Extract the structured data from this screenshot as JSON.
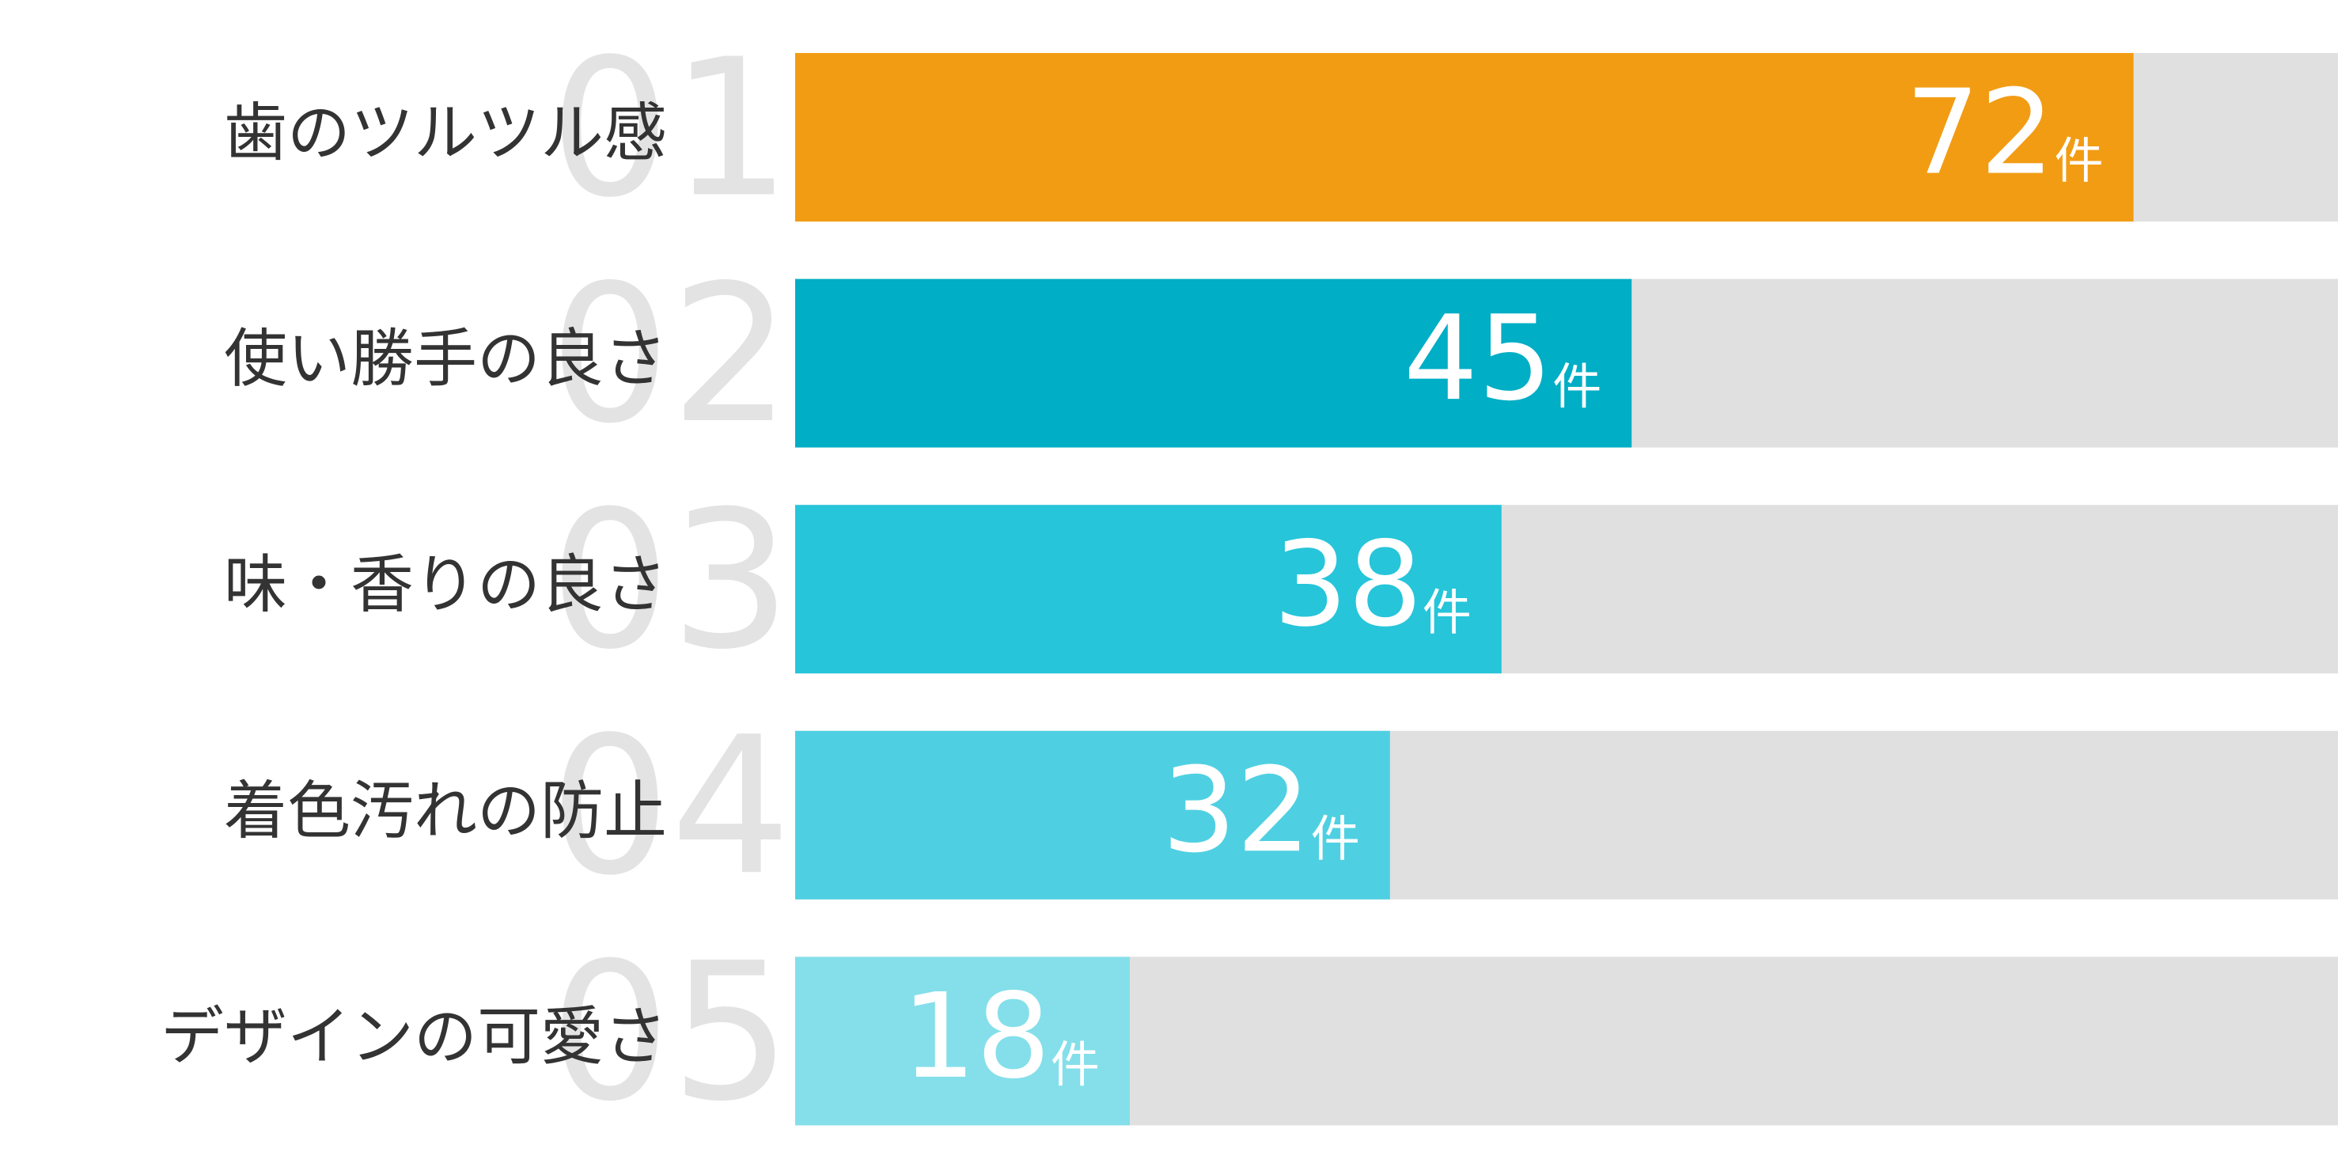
{
  "chart_data": {
    "type": "bar",
    "orientation": "horizontal",
    "categories": [
      "歯のツルツル感",
      "使い勝手の良さ",
      "味・香りの良さ",
      "着色汚れの防止",
      "デザインの可愛さ"
    ],
    "ranks": [
      "01",
      "02",
      "03",
      "04",
      "05"
    ],
    "values": [
      72,
      45,
      38,
      32,
      18
    ],
    "unit": "件",
    "colors": [
      "#f29c14",
      "#00aec5",
      "#26c5d9",
      "#4fd0e2",
      "#84dfea"
    ],
    "track_color": "#e0e0e0",
    "xlim": [
      0,
      83
    ]
  }
}
